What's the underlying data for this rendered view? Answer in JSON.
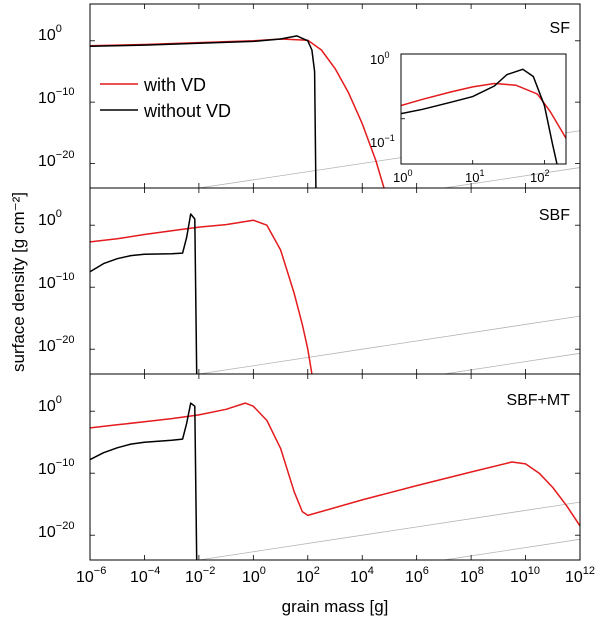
{
  "chart_data": {
    "type": "line",
    "xlabel": "grain mass [g]",
    "ylabel": "surface density [g cm⁻²]",
    "xscale": "log",
    "yscale": "log",
    "xlim": [
      1e-06,
      1000000000000.0
    ],
    "x_ticks": [
      {
        "base": "10",
        "exp": "−6"
      },
      {
        "base": "10",
        "exp": "−4"
      },
      {
        "base": "10",
        "exp": "−2"
      },
      {
        "base": "10",
        "exp": "0"
      },
      {
        "base": "10",
        "exp": "2"
      },
      {
        "base": "10",
        "exp": "4"
      },
      {
        "base": "10",
        "exp": "6"
      },
      {
        "base": "10",
        "exp": "8"
      },
      {
        "base": "10",
        "exp": "10"
      },
      {
        "base": "10",
        "exp": "12"
      }
    ],
    "y_ticks": [
      {
        "base": "10",
        "exp": "0"
      },
      {
        "base": "10",
        "exp": "−10"
      },
      {
        "base": "10",
        "exp": "−20"
      }
    ],
    "legend": [
      {
        "label": "with VD",
        "color": "#e41a1c"
      },
      {
        "label": "without VD",
        "color": "#000000"
      }
    ],
    "guide_line_color": "#b4b4b4",
    "panels": [
      {
        "label": "SF",
        "series": [
          {
            "name": "with VD",
            "color": "#e41a1c",
            "points": [
              [
                -6,
                -0.8
              ],
              [
                -4,
                -0.6
              ],
              [
                -2,
                -0.3
              ],
              [
                0,
                0.0
              ],
              [
                1,
                0.3
              ],
              [
                2,
                0.1
              ],
              [
                2.5,
                -1.5
              ],
              [
                3,
                -4.5
              ],
              [
                3.5,
                -8.5
              ],
              [
                4,
                -13.5
              ],
              [
                4.5,
                -19.5
              ],
              [
                4.8,
                -24
              ]
            ]
          },
          {
            "name": "without VD",
            "color": "#000000",
            "points": [
              [
                -6,
                -0.9
              ],
              [
                -4,
                -0.7
              ],
              [
                -2,
                -0.4
              ],
              [
                0,
                -0.1
              ],
              [
                1,
                0.3
              ],
              [
                1.6,
                0.8
              ],
              [
                2,
                0.0
              ],
              [
                2.15,
                -1.5
              ],
              [
                2.25,
                -5
              ],
              [
                2.3,
                -24
              ]
            ]
          }
        ]
      },
      {
        "label": "SBF",
        "series": [
          {
            "name": "with VD",
            "color": "#e41a1c",
            "points": [
              [
                -6,
                -2.7
              ],
              [
                -5,
                -2.2
              ],
              [
                -4,
                -1.5
              ],
              [
                -3,
                -0.9
              ],
              [
                -2,
                -0.3
              ],
              [
                -1,
                0.1
              ],
              [
                0,
                0.8
              ],
              [
                0.5,
                0.0
              ],
              [
                1,
                -4
              ],
              [
                1.5,
                -11
              ],
              [
                1.8,
                -16
              ],
              [
                2,
                -20
              ],
              [
                2.15,
                -24
              ]
            ]
          },
          {
            "name": "without VD",
            "color": "#000000",
            "points": [
              [
                -6,
                -7.5
              ],
              [
                -5.5,
                -6.2
              ],
              [
                -5,
                -5.4
              ],
              [
                -4.5,
                -4.9
              ],
              [
                -4,
                -4.7
              ],
              [
                -3,
                -4.6
              ],
              [
                -2.6,
                -4.5
              ],
              [
                -2.45,
                -2
              ],
              [
                -2.3,
                1.8
              ],
              [
                -2.15,
                1.0
              ],
              [
                -2.08,
                -24
              ]
            ]
          }
        ]
      },
      {
        "label": "SBF+MT",
        "series": [
          {
            "name": "with VD",
            "color": "#e41a1c",
            "points": [
              [
                -6,
                -2.7
              ],
              [
                -5,
                -2.2
              ],
              [
                -4,
                -1.7
              ],
              [
                -3,
                -1.2
              ],
              [
                -2,
                -0.6
              ],
              [
                -1,
                0.3
              ],
              [
                -0.3,
                1.3
              ],
              [
                0,
                0.8
              ],
              [
                0.5,
                -1.5
              ],
              [
                1,
                -6
              ],
              [
                1.5,
                -13
              ],
              [
                1.8,
                -16.2
              ],
              [
                2,
                -16.8
              ],
              [
                4,
                -14.3
              ],
              [
                6,
                -12.0
              ],
              [
                8,
                -9.8
              ],
              [
                9.5,
                -8.2
              ],
              [
                10,
                -8.5
              ],
              [
                10.5,
                -10
              ],
              [
                11,
                -12.3
              ],
              [
                11.5,
                -15.2
              ],
              [
                12,
                -18.5
              ]
            ]
          },
          {
            "name": "without VD",
            "color": "#000000",
            "points": [
              [
                -6,
                -7.8
              ],
              [
                -5.5,
                -6.7
              ],
              [
                -5,
                -5.9
              ],
              [
                -4.5,
                -5.3
              ],
              [
                -4,
                -5.0
              ],
              [
                -3,
                -4.7
              ],
              [
                -2.6,
                -4.5
              ],
              [
                -2.45,
                -2
              ],
              [
                -2.3,
                1.3
              ],
              [
                -2.15,
                0.8
              ],
              [
                -2.08,
                -24
              ]
            ]
          }
        ]
      }
    ],
    "inset": {
      "xlim": [
        1,
        200
      ],
      "ylim": [
        0.02,
        1
      ],
      "x_ticks": [
        {
          "base": "10",
          "exp": "0"
        },
        {
          "base": "10",
          "exp": "1"
        },
        {
          "base": "10",
          "exp": "2"
        }
      ],
      "y_ticks": [
        {
          "base": "10",
          "exp": "0"
        },
        {
          "base": "10",
          "exp": "−1"
        }
      ],
      "series": [
        {
          "name": "with VD",
          "color": "#e41a1c",
          "points": [
            [
              1,
              0.16
            ],
            [
              2,
              0.2
            ],
            [
              5,
              0.26
            ],
            [
              10,
              0.31
            ],
            [
              20,
              0.35
            ],
            [
              40,
              0.33
            ],
            [
              80,
              0.24
            ],
            [
              120,
              0.13
            ],
            [
              200,
              0.05
            ]
          ]
        },
        {
          "name": "without VD",
          "color": "#000000",
          "points": [
            [
              1,
              0.12
            ],
            [
              2,
              0.14
            ],
            [
              5,
              0.18
            ],
            [
              10,
              0.22
            ],
            [
              20,
              0.32
            ],
            [
              30,
              0.48
            ],
            [
              50,
              0.58
            ],
            [
              70,
              0.45
            ],
            [
              100,
              0.16
            ],
            [
              130,
              0.04
            ],
            [
              150,
              0.02
            ]
          ]
        }
      ]
    }
  }
}
